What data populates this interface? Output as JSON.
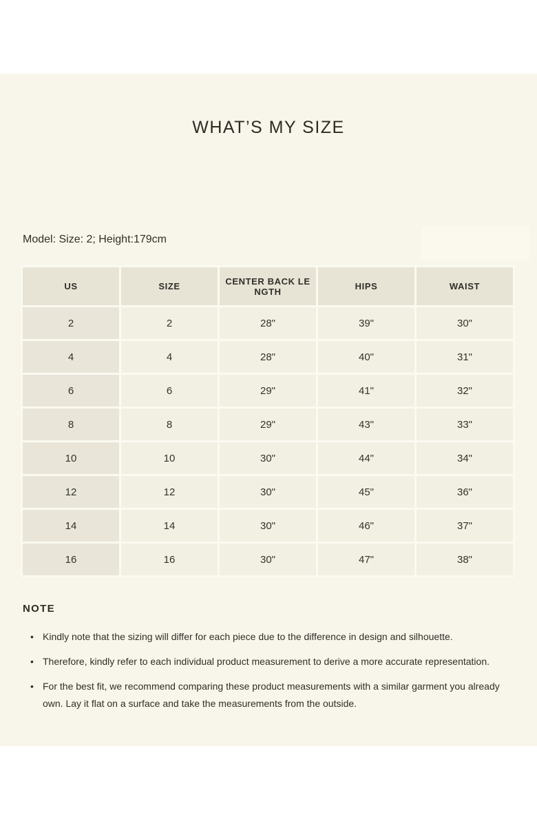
{
  "page": {
    "title": "WHAT’S MY SIZE",
    "model_info": "Model: Size: 2; Height:179cm"
  },
  "size_table": {
    "columns": [
      {
        "key": "us",
        "label": "US"
      },
      {
        "key": "size",
        "label": "SIZE"
      },
      {
        "key": "center-back-length",
        "label": "CENTER BACK LE\nNGTH"
      },
      {
        "key": "hips",
        "label": "HIPS"
      },
      {
        "key": "waist",
        "label": "WAIST"
      }
    ],
    "rows": [
      [
        "2",
        "2",
        "28\"",
        "39\"",
        "30\""
      ],
      [
        "4",
        "4",
        "28\"",
        "40\"",
        "31\""
      ],
      [
        "6",
        "6",
        "29\"",
        "41\"",
        "32\""
      ],
      [
        "8",
        "8",
        "29\"",
        "43\"",
        "33\""
      ],
      [
        "10",
        "10",
        "30\"",
        "44\"",
        "34\""
      ],
      [
        "12",
        "12",
        "30\"",
        "45\"",
        "36\""
      ],
      [
        "14",
        "14",
        "30\"",
        "46\"",
        "37\""
      ],
      [
        "16",
        "16",
        "30\"",
        "47\"",
        "38\""
      ]
    ]
  },
  "note": {
    "heading": "NOTE",
    "bullets": [
      "Kindly note that the sizing will differ for each piece due to the difference in design and silhouette.",
      "Therefore, kindly refer to each individual product measurement to derive a more accurate representation.",
      "For the best fit, we recommend comparing these product measurements with a similar garment you already own. Lay it flat on a surface and take the measurements from the outside."
    ]
  },
  "colors": {
    "outer_background": "#ffffff",
    "page_background": "#f8f6ea",
    "table_header_bg": "#e7e4d6",
    "table_first_column_bg": "#e9e6d9",
    "table_cell_bg": "#f2f0e3",
    "table_gap": "#fbfaf1",
    "text": "#2f2e27"
  }
}
